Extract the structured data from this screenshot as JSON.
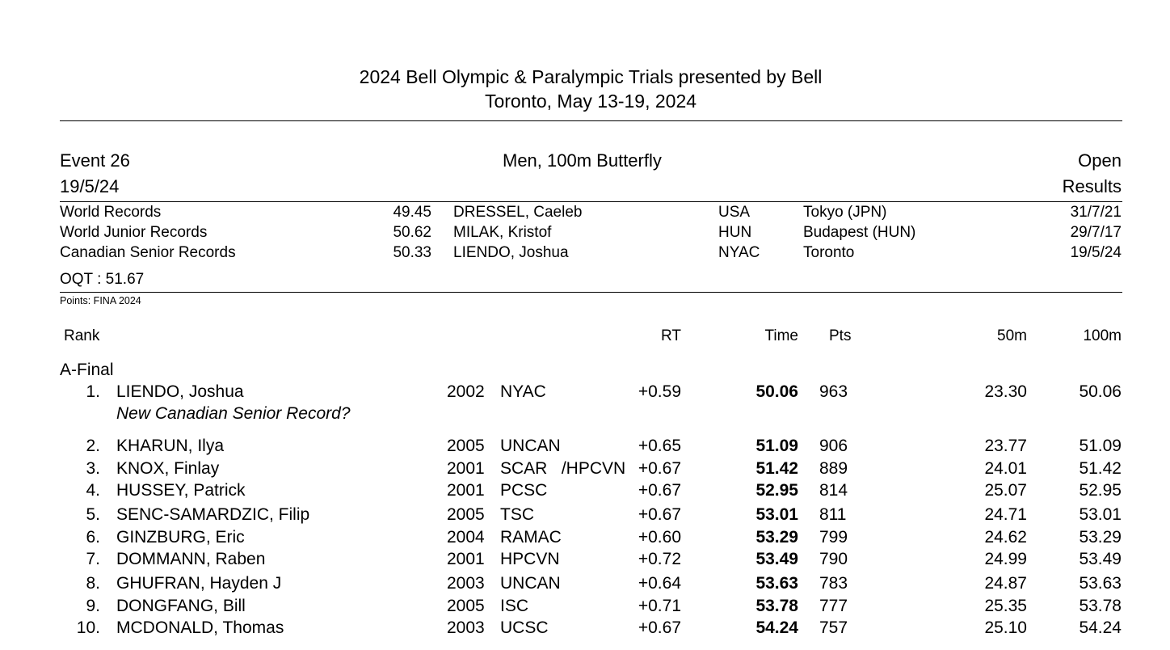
{
  "header": {
    "title": "2024 Bell Olympic & Paralympic Trials presented by Bell",
    "subtitle": "Toronto, May 13-19, 2024"
  },
  "event": {
    "number": "Event 26",
    "date": "19/5/24",
    "name": "Men, 100m Butterfly",
    "category": "Open",
    "status": "Results"
  },
  "records": [
    {
      "label": "World Records",
      "time": "49.45",
      "name": "DRESSEL, Caeleb",
      "code": "USA",
      "place": "Tokyo (JPN)",
      "date": "31/7/21"
    },
    {
      "label": "World Junior Records",
      "time": "50.62",
      "name": "MILAK, Kristof",
      "code": "HUN",
      "place": "Budapest (HUN)",
      "date": "29/7/17"
    },
    {
      "label": "Canadian Senior Records",
      "time": "50.33",
      "name": "LIENDO, Joshua",
      "code": "NYAC",
      "place": "Toronto",
      "date": "19/5/24"
    }
  ],
  "oqt": "OQT : 51.67",
  "points_note": "Points: FINA 2024",
  "columns": {
    "rank": "Rank",
    "rt": "RT",
    "time": "Time",
    "pts": "Pts",
    "split50": "50m",
    "split100": "100m"
  },
  "section": "A-Final",
  "results": [
    {
      "rank": "1.",
      "name": "LIENDO, Joshua",
      "yob": "2002",
      "club": "NYAC",
      "rt": "+0.59",
      "time": "50.06",
      "pts": "963",
      "split50": "23.30",
      "split100": "50.06",
      "note": "New Canadian Senior Record?"
    },
    {
      "rank": "2.",
      "name": "KHARUN, Ilya",
      "yob": "2005",
      "club": "UNCAN",
      "rt": "+0.65",
      "time": "51.09",
      "pts": "906",
      "split50": "23.77",
      "split100": "51.09"
    },
    {
      "rank": "3.",
      "name": "KNOX, Finlay",
      "yob": "2001",
      "club": "SCAR   /HPCVN",
      "rt": "+0.67",
      "time": "51.42",
      "pts": "889",
      "split50": "24.01",
      "split100": "51.42"
    },
    {
      "rank": "4.",
      "name": "HUSSEY, Patrick",
      "yob": "2001",
      "club": "PCSC",
      "rt": "+0.67",
      "time": "52.95",
      "pts": "814",
      "split50": "25.07",
      "split100": "52.95"
    },
    {
      "rank": "5.",
      "name": "SENC-SAMARDZIC, Filip",
      "yob": "2005",
      "club": "TSC",
      "rt": "+0.67",
      "time": "53.01",
      "pts": "811",
      "split50": "24.71",
      "split100": "53.01"
    },
    {
      "rank": "6.",
      "name": "GINZBURG, Eric",
      "yob": "2004",
      "club": "RAMAC",
      "rt": "+0.60",
      "time": "53.29",
      "pts": "799",
      "split50": "24.62",
      "split100": "53.29"
    },
    {
      "rank": "7.",
      "name": "DOMMANN, Raben",
      "yob": "2001",
      "club": "HPCVN",
      "rt": "+0.72",
      "time": "53.49",
      "pts": "790",
      "split50": "24.99",
      "split100": "53.49"
    },
    {
      "rank": "8.",
      "name": "GHUFRAN, Hayden J",
      "yob": "2003",
      "club": "UNCAN",
      "rt": "+0.64",
      "time": "53.63",
      "pts": "783",
      "split50": "24.87",
      "split100": "53.63"
    },
    {
      "rank": "9.",
      "name": "DONGFANG, Bill",
      "yob": "2005",
      "club": "ISC",
      "rt": "+0.71",
      "time": "53.78",
      "pts": "777",
      "split50": "25.35",
      "split100": "53.78"
    },
    {
      "rank": "10.",
      "name": "MCDONALD, Thomas",
      "yob": "2003",
      "club": "UCSC",
      "rt": "+0.67",
      "time": "54.24",
      "pts": "757",
      "split50": "25.10",
      "split100": "54.24"
    }
  ]
}
